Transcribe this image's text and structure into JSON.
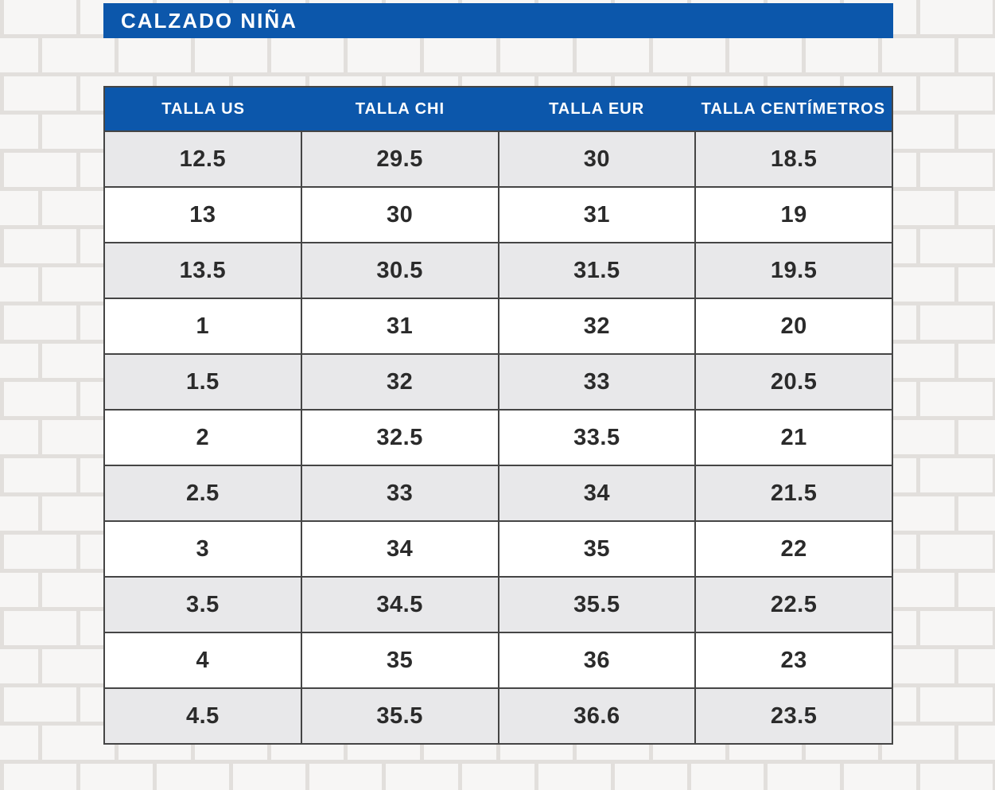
{
  "colors": {
    "accent_blue": "#0c57ab",
    "header_text": "#ffffff",
    "row_alt": "#e8e8ea",
    "row_white": "#ffffff",
    "grid_line": "#454545",
    "cell_text": "#2b2b2b",
    "brick": "#f7f6f5",
    "mortar": "#e2dfdc"
  },
  "chart_data": {
    "type": "table",
    "title": "CALZADO NIÑA",
    "columns": [
      "TALLA US",
      "TALLA CHI",
      "TALLA EUR",
      "TALLA CENTÍMETROS"
    ],
    "rows": [
      [
        "12.5",
        "29.5",
        "30",
        "18.5"
      ],
      [
        "13",
        "30",
        "31",
        "19"
      ],
      [
        "13.5",
        "30.5",
        "31.5",
        "19.5"
      ],
      [
        "1",
        "31",
        "32",
        "20"
      ],
      [
        "1.5",
        "32",
        "33",
        "20.5"
      ],
      [
        "2",
        "32.5",
        "33.5",
        "21"
      ],
      [
        "2.5",
        "33",
        "34",
        "21.5"
      ],
      [
        "3",
        "34",
        "35",
        "22"
      ],
      [
        "3.5",
        "34.5",
        "35.5",
        "22.5"
      ],
      [
        "4",
        "35",
        "36",
        "23"
      ],
      [
        "4.5",
        "35.5",
        "36.6",
        "23.5"
      ]
    ],
    "layout": {
      "grid": "on",
      "row_striping": "gray-white alternating, first row gray"
    }
  }
}
